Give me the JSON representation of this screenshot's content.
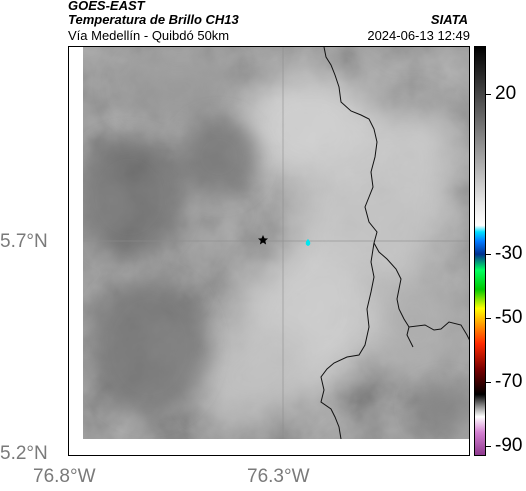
{
  "header": {
    "satellite": "GOES-EAST",
    "product": "Temperatura de Brillo CH13",
    "organization": "SIATA",
    "route": "Vía Medellín - Quibdó 50km",
    "timestamp": "2024-06-13 12:49"
  },
  "axes": {
    "lat_labels": [
      "5.7°N",
      "5.2°N"
    ],
    "lon_labels": [
      "76.8°W",
      "76.3°W"
    ]
  },
  "colorbar": {
    "labels": [
      "20",
      "-30",
      "-50",
      "-70",
      "-90"
    ],
    "values": [
      20,
      -30,
      -50,
      -70,
      -90
    ],
    "range": [
      -93,
      35
    ],
    "stops": [
      {
        "v": -93,
        "c": "#8e3a8e"
      },
      {
        "v": -86,
        "c": "#d37fd0"
      },
      {
        "v": -81,
        "c": "#ffffff"
      },
      {
        "v": -78,
        "c": "#999999"
      },
      {
        "v": -74,
        "c": "#000000"
      },
      {
        "v": -66,
        "c": "#7a0000"
      },
      {
        "v": -58,
        "c": "#ff2a00"
      },
      {
        "v": -52,
        "c": "#ff9c00"
      },
      {
        "v": -47,
        "c": "#ffff00"
      },
      {
        "v": -41,
        "c": "#00c800"
      },
      {
        "v": -35,
        "c": "#00ff60"
      },
      {
        "v": -30,
        "c": "#003090"
      },
      {
        "v": -26,
        "c": "#0078ff"
      },
      {
        "v": -23,
        "c": "#00e0ff"
      },
      {
        "v": -21,
        "c": "#ffffff"
      },
      {
        "v": -15,
        "c": "#ebebeb"
      },
      {
        "v": 35,
        "c": "#000000"
      }
    ]
  },
  "markers": {
    "origin_icon": "black-star-icon",
    "destination_icon": "cyan-drop-icon",
    "origin_color": "#000000",
    "destination_color": "#00e5ee"
  }
}
